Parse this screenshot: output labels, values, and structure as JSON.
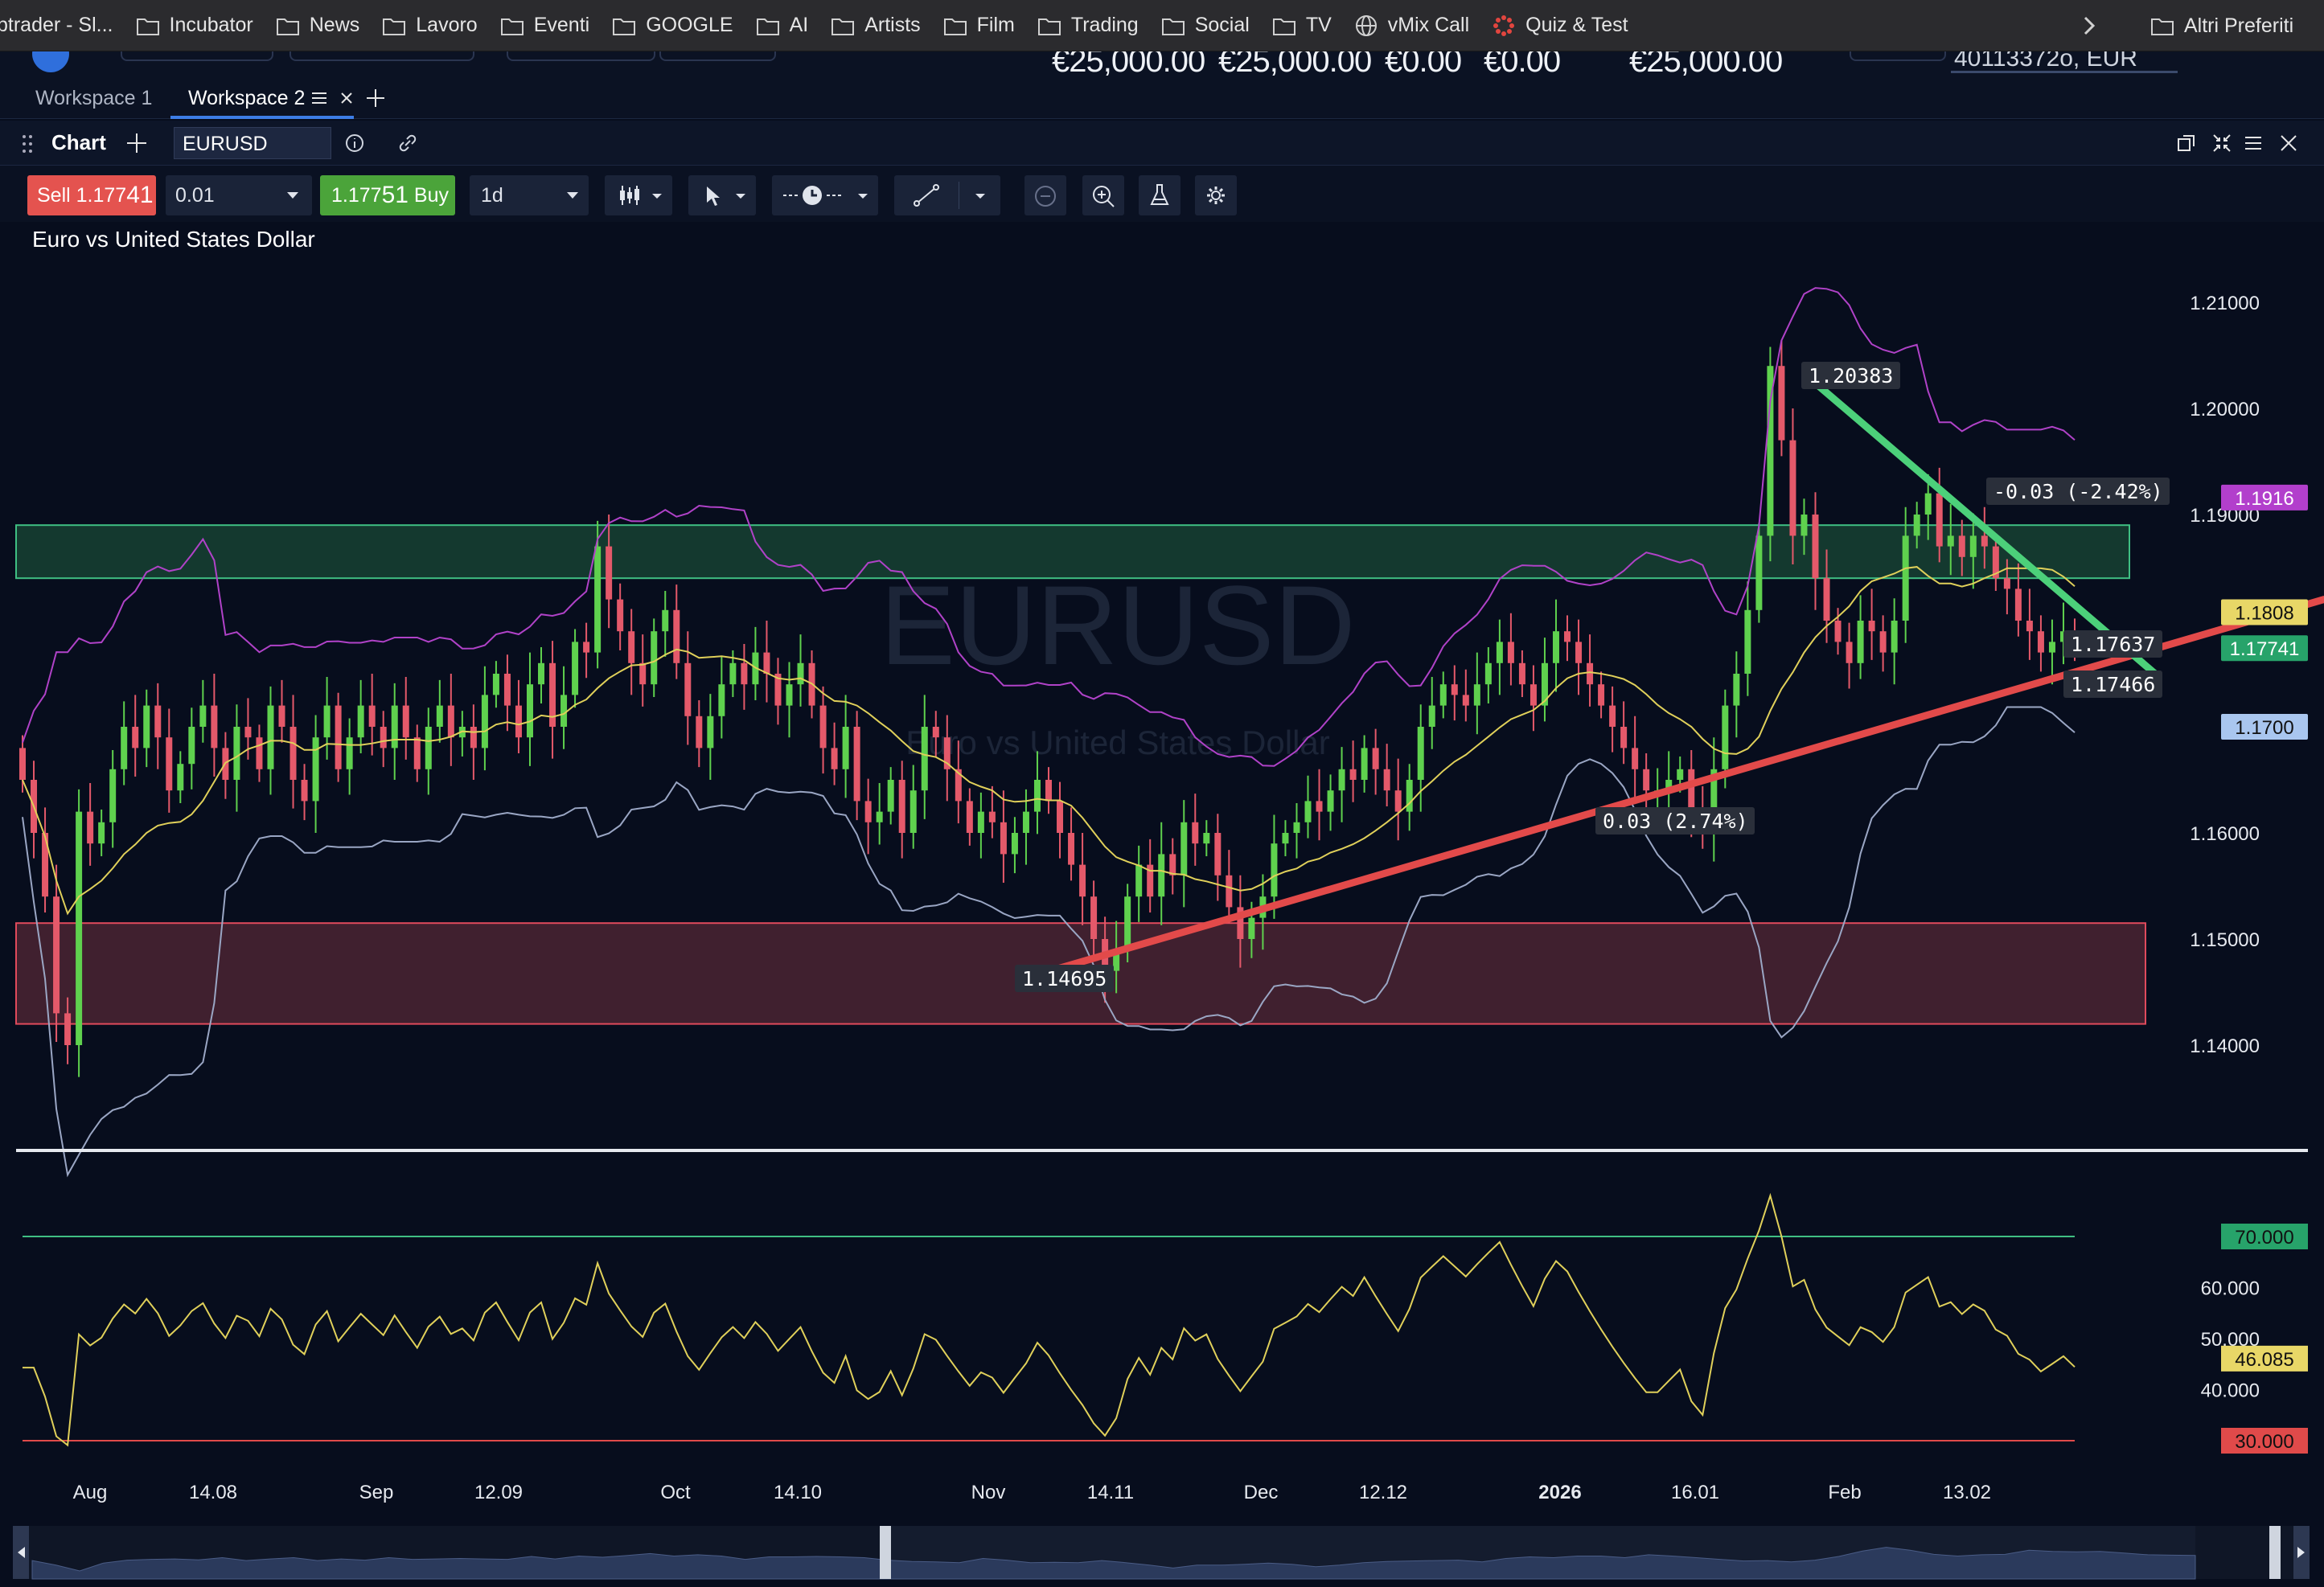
{
  "browser": {
    "tab_fragment": "ptrader - Sl...",
    "bookmarks": [
      "Incubator",
      "News",
      "Lavoro",
      "Eventi",
      "GOOGLE",
      "AI",
      "Artists",
      "Film",
      "Trading",
      "Social",
      "TV",
      "vMix Call",
      "Quiz & Test"
    ],
    "other_bookmarks": "Altri Preferiti"
  },
  "header": {
    "balances": [
      "€25,000.00",
      "€25,000.00",
      "€0.00",
      "€0.00",
      "€25,000.00"
    ],
    "account": "40113372o, EUR"
  },
  "workspaces": [
    "Workspace 1",
    "Workspace 2"
  ],
  "panel": {
    "title": "Chart",
    "symbol": "EURUSD"
  },
  "toolbar": {
    "sell_label": "Sell",
    "sell_price_main": "1.177",
    "sell_price_big": "41",
    "quantity": "0.01",
    "buy_price_main": "1.177",
    "buy_price_big": "51",
    "buy_label": "Buy",
    "timeframe": "1d"
  },
  "chart_data": {
    "type": "candlestick",
    "title": "Euro vs United States Dollar",
    "watermark_symbol": "EURUSD",
    "watermark_name": "Euro vs United States Dollar",
    "ylim": [
      1.133,
      1.216
    ],
    "y_ticks": [
      "1.21000",
      "1.20000",
      "1.19000",
      "1.16000",
      "1.15000",
      "1.14000"
    ],
    "x_ticks": [
      "Aug",
      "14.08",
      "Sep",
      "12.09",
      "Oct",
      "14.10",
      "Nov",
      "14.11",
      "Dec",
      "12.12",
      "2026",
      "16.01",
      "Feb",
      "13.02"
    ],
    "closes": [
      1.165,
      1.16,
      1.154,
      1.143,
      1.14,
      1.162,
      1.159,
      1.161,
      1.166,
      1.17,
      1.168,
      1.172,
      1.169,
      1.164,
      1.1665,
      1.17,
      1.172,
      1.168,
      1.165,
      1.17,
      1.169,
      1.166,
      1.172,
      1.17,
      1.165,
      1.163,
      1.169,
      1.172,
      1.166,
      1.169,
      1.172,
      1.17,
      1.168,
      1.172,
      1.169,
      1.166,
      1.17,
      1.172,
      1.169,
      1.17,
      1.168,
      1.173,
      1.175,
      1.172,
      1.169,
      1.174,
      1.176,
      1.17,
      1.173,
      1.178,
      1.177,
      1.187,
      1.182,
      1.179,
      1.176,
      1.174,
      1.179,
      1.181,
      1.176,
      1.171,
      1.168,
      1.171,
      1.174,
      1.176,
      1.174,
      1.177,
      1.175,
      1.172,
      1.174,
      1.176,
      1.172,
      1.168,
      1.166,
      1.17,
      1.163,
      1.161,
      1.162,
      1.165,
      1.16,
      1.164,
      1.17,
      1.169,
      1.166,
      1.163,
      1.16,
      1.162,
      1.161,
      1.158,
      1.16,
      1.162,
      1.165,
      1.163,
      1.16,
      1.157,
      1.154,
      1.15,
      1.147,
      1.149,
      1.154,
      1.157,
      1.154,
      1.158,
      1.156,
      1.161,
      1.159,
      1.16,
      1.156,
      1.153,
      1.15,
      1.152,
      1.154,
      1.159,
      1.16,
      1.161,
      1.163,
      1.162,
      1.164,
      1.166,
      1.165,
      1.168,
      1.166,
      1.164,
      1.162,
      1.165,
      1.17,
      1.172,
      1.174,
      1.173,
      1.172,
      1.174,
      1.176,
      1.178,
      1.176,
      1.174,
      1.172,
      1.176,
      1.179,
      1.178,
      1.176,
      1.174,
      1.172,
      1.17,
      1.168,
      1.166,
      1.164,
      1.164,
      1.165,
      1.166,
      1.162,
      1.16,
      1.166,
      1.172,
      1.175,
      1.181,
      1.188,
      1.204,
      1.197,
      1.188,
      1.19,
      1.184,
      1.18,
      1.178,
      1.176,
      1.18,
      1.179,
      1.177,
      1.18,
      1.188,
      1.19,
      1.192,
      1.187,
      1.188,
      1.186,
      1.188,
      1.187,
      1.184,
      1.183,
      1.18,
      1.179,
      1.177,
      1.178,
      1.179,
      1.1774
    ],
    "bollinger": {
      "upper_color": "#b042c8",
      "lower_color": "#9aa6c4",
      "middle_color": "#e0d05a"
    },
    "support_zone": {
      "from": 1.142,
      "to": 1.1515,
      "color": "#e04a5c"
    },
    "resistance_zone": {
      "from": 1.184,
      "to": 1.189,
      "color": "#3fbf83"
    },
    "trend_up": {
      "from_label": "1.14695",
      "change_label": "0.03 (2.74%)",
      "color": "#e24a4a"
    },
    "trend_down": {
      "from_label": "1.20383",
      "change_label": "-0.03 (-2.42%)",
      "color": "#4cd07a"
    },
    "line_labels": [
      "1.17637",
      "1.17466"
    ],
    "price_tags": [
      {
        "value": "1.1916",
        "bg": "#b23fcc",
        "fg": "#ffffff"
      },
      {
        "value": "1.1808",
        "bg": "#e8d767",
        "fg": "#111111"
      },
      {
        "value": "1.17741",
        "bg": "#27a36a",
        "fg": "#ffffff"
      },
      {
        "value": "1.1700",
        "bg": "#a9c6ef",
        "fg": "#111111"
      }
    ],
    "rsi": {
      "levels": [
        "70.000",
        "60.000",
        "50.000",
        "40.000",
        "30.000"
      ],
      "current": "46.085",
      "overbought_color": "#3fbf83",
      "oversold_color": "#e04a4a",
      "line_color": "#e0d05a"
    }
  }
}
